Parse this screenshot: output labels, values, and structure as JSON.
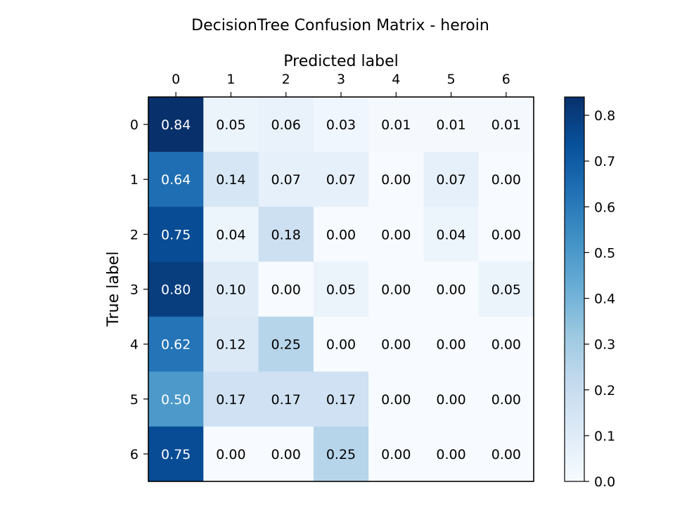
{
  "chart_data": {
    "type": "heatmap",
    "title": "DecisionTree Confusion Matrix - heroin",
    "xlabel": "Predicted label",
    "ylabel": "True label",
    "x_categories": [
      "0",
      "1",
      "2",
      "3",
      "4",
      "5",
      "6"
    ],
    "y_categories": [
      "0",
      "1",
      "2",
      "3",
      "4",
      "5",
      "6"
    ],
    "values": [
      [
        0.84,
        0.05,
        0.06,
        0.03,
        0.01,
        0.01,
        0.01
      ],
      [
        0.64,
        0.14,
        0.07,
        0.07,
        0.0,
        0.07,
        0.0
      ],
      [
        0.75,
        0.04,
        0.18,
        0.0,
        0.0,
        0.04,
        0.0
      ],
      [
        0.8,
        0.1,
        0.0,
        0.05,
        0.0,
        0.0,
        0.05
      ],
      [
        0.62,
        0.12,
        0.25,
        0.0,
        0.0,
        0.0,
        0.0
      ],
      [
        0.5,
        0.17,
        0.17,
        0.17,
        0.0,
        0.0,
        0.0
      ],
      [
        0.75,
        0.0,
        0.0,
        0.25,
        0.0,
        0.0,
        0.0
      ]
    ],
    "colormap": "Blues",
    "colorbar": {
      "vmin": 0.0,
      "vmax": 0.84,
      "ticks": [
        "0.0",
        "0.1",
        "0.2",
        "0.3",
        "0.4",
        "0.5",
        "0.6",
        "0.7",
        "0.8"
      ]
    },
    "x_axis_position": "top",
    "grid": false
  }
}
